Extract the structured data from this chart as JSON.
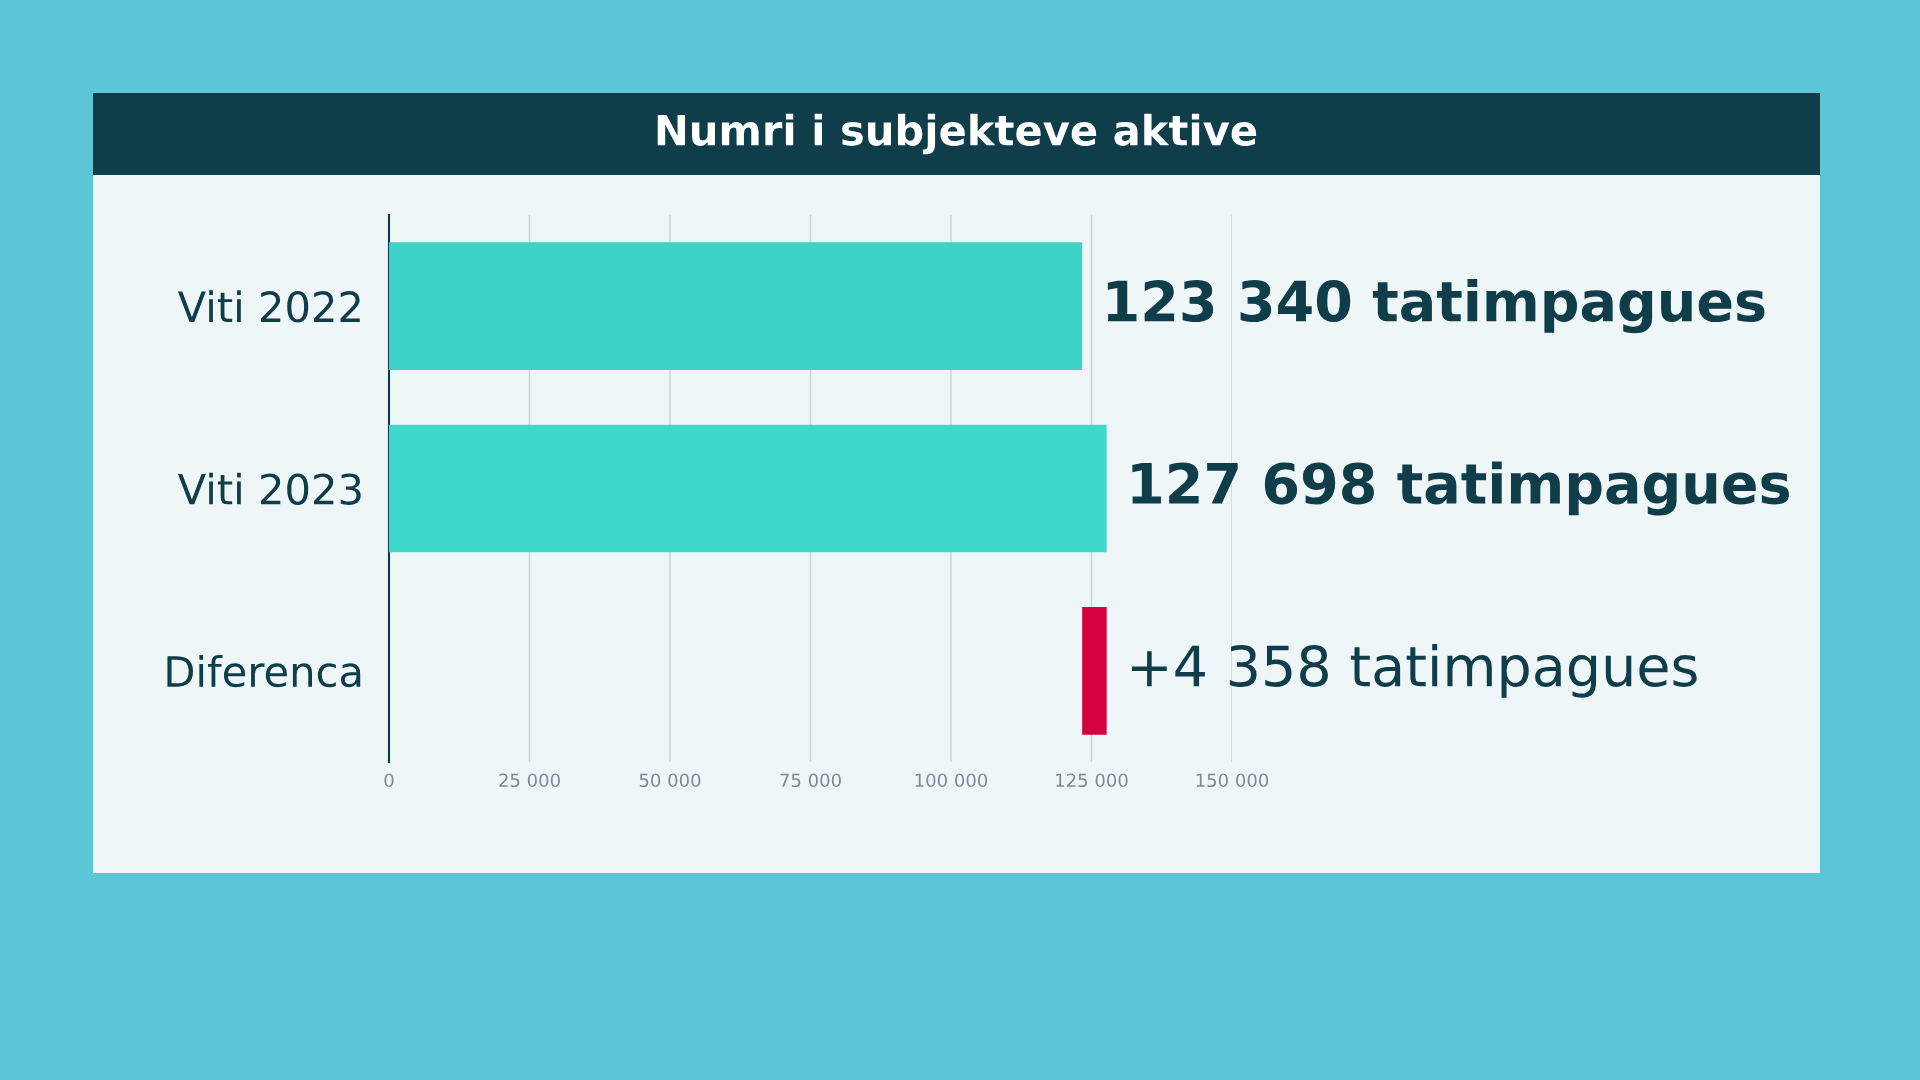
{
  "chart_data": {
    "type": "bar",
    "orientation": "horizontal",
    "title": "Numri i subjekteve aktive",
    "categories": [
      "Viti 2022",
      "Viti 2023",
      "Diferenca"
    ],
    "values": [
      123340,
      127698,
      4358
    ],
    "base": [
      null,
      null,
      123340
    ],
    "colors": [
      "#3fd3c8",
      "#3fd8cc",
      "#d4003f"
    ],
    "value_labels": [
      "123 340 tatimpagues",
      "127 698 tatimpagues",
      "+4 358 tatimpagues"
    ],
    "xlim": [
      0,
      150000
    ],
    "xticks": [
      0,
      {
        "value": 25000,
        "label": "25 000"
      },
      {
        "value": 50000,
        "label": "50 000"
      },
      {
        "value": 75000,
        "label": "75 000"
      },
      {
        "value": 100000,
        "label": "100 000"
      },
      {
        "value": 125000,
        "label": "125 000"
      },
      {
        "value": 150000,
        "label": "150 000"
      }
    ],
    "grid": "x",
    "legend": false
  }
}
